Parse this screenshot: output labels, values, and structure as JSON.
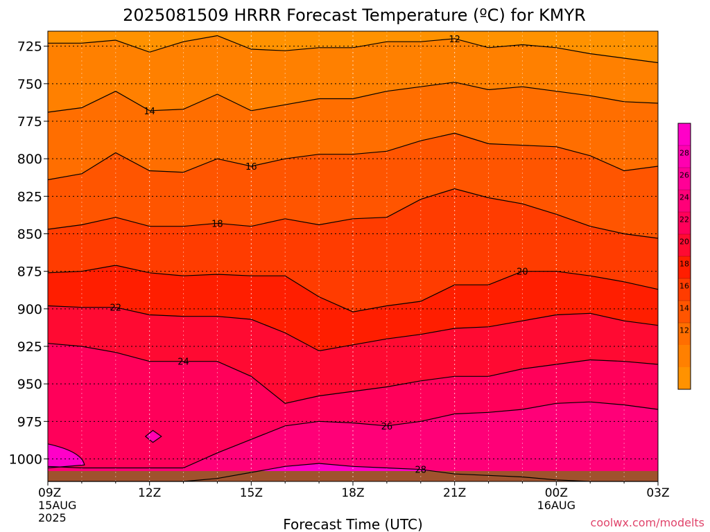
{
  "chart_data": {
    "type": "heatmap",
    "title": "2025081509 HRRR Forecast Temperature (ºC) for KMYR",
    "xlabel": "Forecast Time (UTC)",
    "ylabel": "",
    "credit": "coolwx.com/modelts",
    "y_axis": {
      "range": [
        1015,
        715
      ],
      "ticks": [
        725,
        750,
        775,
        800,
        825,
        850,
        875,
        900,
        925,
        950,
        975,
        1000
      ]
    },
    "x_axis": {
      "range": [
        0,
        18
      ],
      "ticks": [
        {
          "v": 0,
          "label": "09Z",
          "sub1": "15AUG",
          "sub2": "2025"
        },
        {
          "v": 3,
          "label": "12Z",
          "sub1": "",
          "sub2": ""
        },
        {
          "v": 6,
          "label": "15Z",
          "sub1": "",
          "sub2": ""
        },
        {
          "v": 9,
          "label": "18Z",
          "sub1": "",
          "sub2": ""
        },
        {
          "v": 12,
          "label": "21Z",
          "sub1": "",
          "sub2": ""
        },
        {
          "v": 15,
          "label": "00Z",
          "sub1": "16AUG",
          "sub2": ""
        },
        {
          "v": 18,
          "label": "03Z",
          "sub1": "",
          "sub2": ""
        }
      ]
    },
    "grid": true,
    "colorbar": {
      "labels": [
        "28",
        "26",
        "24",
        "22",
        "20",
        "18",
        "16",
        "14",
        "12"
      ],
      "colors": [
        "#ff00c8",
        "#ff00b0",
        "#ff0096",
        "#ff0078",
        "#ff005a",
        "#ff0a32",
        "#ff1e00",
        "#ff3c00",
        "#ff5500",
        "#ff6e00",
        "#ff8000",
        "#ff9200"
      ]
    },
    "x_hours": [
      0,
      1,
      2,
      3,
      4,
      5,
      6,
      7,
      8,
      9,
      10,
      11,
      12,
      13,
      14,
      15,
      16,
      17,
      18
    ],
    "contours": [
      {
        "level": 12,
        "label": "12",
        "label_at": 12,
        "p": [
          723,
          723,
          721,
          729,
          722,
          718,
          727,
          728,
          726,
          726,
          722,
          722,
          720,
          726,
          724,
          726,
          730,
          733,
          736
        ]
      },
      {
        "level": 14,
        "label": "14",
        "label_at": 3,
        "p": [
          769,
          766,
          755,
          768,
          767,
          757,
          768,
          764,
          760,
          760,
          755,
          752,
          749,
          754,
          752,
          755,
          758,
          762,
          763
        ]
      },
      {
        "level": 16,
        "label": "16",
        "label_at": 6,
        "p": [
          814,
          810,
          796,
          808,
          809,
          800,
          805,
          800,
          797,
          797,
          795,
          788,
          783,
          790,
          791,
          792,
          798,
          808,
          805
        ]
      },
      {
        "level": 18,
        "label": "18",
        "label_at": 5,
        "p": [
          847,
          844,
          839,
          845,
          845,
          843,
          845,
          840,
          844,
          840,
          839,
          827,
          820,
          826,
          830,
          837,
          845,
          850,
          853
        ]
      },
      {
        "level": 20,
        "label": "20",
        "label_at": 14,
        "p": [
          876,
          875,
          871,
          876,
          878,
          877,
          878,
          878,
          892,
          902,
          898,
          895,
          884,
          884,
          875,
          875,
          878,
          882,
          887
        ]
      },
      {
        "level": 22,
        "label": "22",
        "label_at": 2,
        "p": [
          898,
          899,
          899,
          904,
          905,
          905,
          907,
          916,
          928,
          924,
          920,
          917,
          913,
          912,
          908,
          904,
          903,
          908,
          911
        ]
      },
      {
        "level": 24,
        "label": "24",
        "label_at": 4,
        "p": [
          923,
          925,
          929,
          935,
          935,
          935,
          945,
          963,
          958,
          955,
          952,
          948,
          945,
          945,
          940,
          937,
          934,
          935,
          937
        ]
      },
      {
        "level": 26,
        "label": "26",
        "label_at": 10,
        "p": [
          1005,
          1006,
          1006,
          1006,
          1006,
          996,
          987,
          978,
          975,
          976,
          978,
          975,
          970,
          969,
          967,
          963,
          962,
          964,
          967
        ]
      },
      {
        "level": 28,
        "label": "28",
        "label_at": 11,
        "p": [
          1016,
          1016,
          1016,
          1016,
          1016,
          1013,
          1009,
          1005,
          1003,
          1005,
          1006,
          1007,
          1010,
          1011,
          1012,
          1014,
          1016,
          1016,
          1016
        ]
      }
    ]
  }
}
